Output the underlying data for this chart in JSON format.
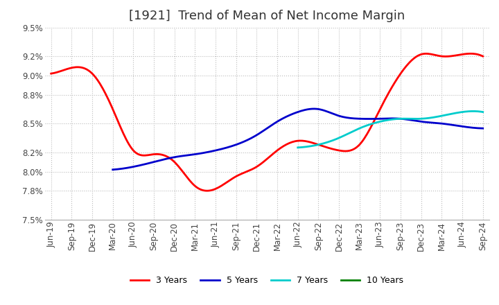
{
  "title": "[1921]  Trend of Mean of Net Income Margin",
  "ylim": [
    7.5,
    9.5
  ],
  "yticks": [
    7.5,
    7.8,
    8.0,
    8.2,
    8.5,
    8.8,
    9.0,
    9.2,
    9.5
  ],
  "ytick_labels": [
    "7.5%",
    "7.8%",
    "8.0%",
    "8.2%",
    "8.5%",
    "8.8%",
    "9.0%",
    "9.2%",
    "9.5%"
  ],
  "x_labels": [
    "Jun-19",
    "Sep-19",
    "Dec-19",
    "Mar-20",
    "Jun-20",
    "Sep-20",
    "Dec-20",
    "Mar-21",
    "Jun-21",
    "Sep-21",
    "Dec-21",
    "Mar-22",
    "Jun-22",
    "Sep-22",
    "Dec-22",
    "Mar-23",
    "Jun-23",
    "Sep-23",
    "Dec-23",
    "Mar-24",
    "Jun-24",
    "Sep-24"
  ],
  "series": {
    "3 Years": {
      "color": "#FF0000",
      "values": [
        9.02,
        9.08,
        9.02,
        8.65,
        8.22,
        8.18,
        8.1,
        7.85,
        7.82,
        7.95,
        8.05,
        8.22,
        8.32,
        8.28,
        8.22,
        8.28,
        8.65,
        9.02,
        9.22,
        9.2,
        9.22,
        9.2
      ]
    },
    "5 Years": {
      "color": "#0000CC",
      "values": [
        null,
        null,
        null,
        8.02,
        8.05,
        8.1,
        8.15,
        8.18,
        8.22,
        8.28,
        8.38,
        8.52,
        8.62,
        8.65,
        8.58,
        8.55,
        8.55,
        8.55,
        8.52,
        8.5,
        8.47,
        8.45
      ]
    },
    "7 Years": {
      "color": "#00CCCC",
      "values": [
        null,
        null,
        null,
        null,
        null,
        null,
        null,
        null,
        null,
        null,
        null,
        null,
        8.25,
        8.28,
        8.35,
        8.45,
        8.52,
        8.55,
        8.55,
        8.58,
        8.62,
        8.62
      ]
    },
    "10 Years": {
      "color": "#008000",
      "values": [
        null,
        null,
        null,
        null,
        null,
        null,
        null,
        null,
        null,
        null,
        null,
        null,
        null,
        null,
        null,
        null,
        null,
        null,
        null,
        null,
        null,
        null
      ]
    }
  },
  "legend": [
    "3 Years",
    "5 Years",
    "7 Years",
    "10 Years"
  ],
  "legend_colors": [
    "#FF0000",
    "#0000CC",
    "#00CCCC",
    "#008000"
  ],
  "background_color": "#FFFFFF",
  "grid_color": "#BBBBBB",
  "title_fontsize": 13,
  "tick_fontsize": 8.5
}
